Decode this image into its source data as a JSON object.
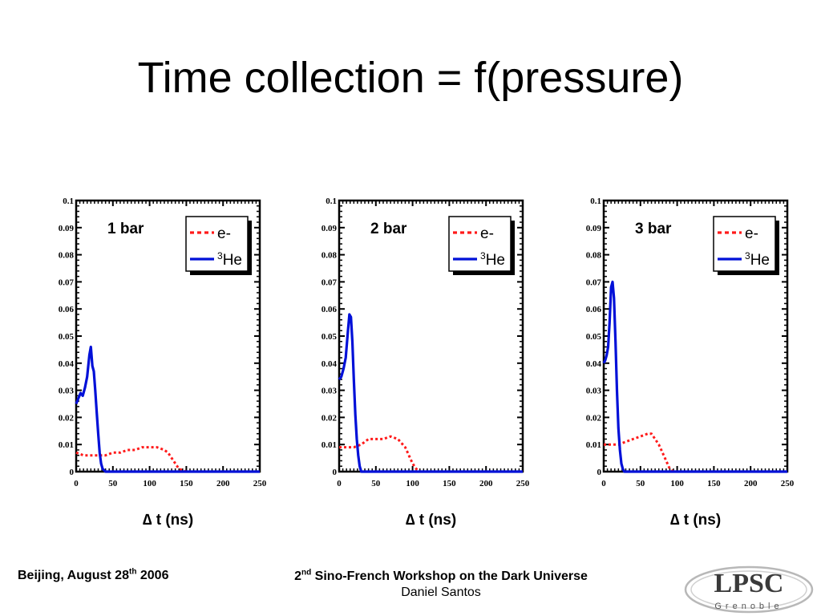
{
  "slide": {
    "title": "Time collection = f(pressure)"
  },
  "footer": {
    "location_date": {
      "prefix": "Beijing,  August 28",
      "sup": "th",
      "suffix": "  2006"
    },
    "workshop": {
      "prefix": "2",
      "sup": "nd",
      "suffix": " Sino-French Workshop on the Dark Universe"
    },
    "author": "Daniel Santos",
    "logo_text": "LPSC",
    "logo_subtext": "Grenoble"
  },
  "colors": {
    "electron_series": "#ff1a1a",
    "helium_series": "#0010d8",
    "axes": "#000000"
  },
  "chart_data": [
    {
      "type": "line",
      "panel_label": "1 bar",
      "xlabel": "∆ t (ns)",
      "ylabel": "",
      "xlim": [
        0,
        250
      ],
      "ylim": [
        0,
        0.1
      ],
      "xticks": [
        0,
        50,
        100,
        150,
        200,
        250
      ],
      "xtick_labels": [
        "0",
        "50",
        "100",
        "150",
        "200",
        "250"
      ],
      "yticks": [
        0,
        0.01,
        0.02,
        0.03,
        0.04,
        0.05,
        0.06,
        0.07,
        0.08,
        0.09,
        0.1
      ],
      "ytick_labels": [
        "0",
        "0.01",
        "0.02",
        "0.03",
        "0.04",
        "0.05",
        "0.06",
        "0.07",
        "0.08",
        "0.09",
        "0.1"
      ],
      "legend_position": "top-right",
      "series": [
        {
          "name": "e-",
          "legend": {
            "text": "e-"
          },
          "style": "dotted",
          "color": "#ff1a1a",
          "x": [
            0,
            10,
            20,
            30,
            40,
            50,
            60,
            70,
            80,
            90,
            100,
            110,
            120,
            125,
            130,
            135,
            140,
            150,
            200,
            250
          ],
          "y": [
            0.007,
            0.006,
            0.006,
            0.006,
            0.006,
            0.007,
            0.007,
            0.008,
            0.008,
            0.009,
            0.009,
            0.009,
            0.008,
            0.007,
            0.005,
            0.003,
            0.001,
            0,
            0,
            0
          ]
        },
        {
          "name": "3He",
          "legend": {
            "sup": "3",
            "text": "He"
          },
          "style": "solid",
          "color": "#0010d8",
          "x": [
            0,
            3,
            6,
            9,
            12,
            15,
            18,
            20,
            22,
            24,
            26,
            28,
            30,
            32,
            34,
            36,
            40,
            50,
            100,
            150,
            200,
            250
          ],
          "y": [
            0.025,
            0.027,
            0.029,
            0.028,
            0.031,
            0.035,
            0.043,
            0.046,
            0.039,
            0.037,
            0.03,
            0.022,
            0.014,
            0.007,
            0.003,
            0.001,
            0,
            0,
            0,
            0,
            0,
            0
          ]
        }
      ]
    },
    {
      "type": "line",
      "panel_label": "2 bar",
      "xlabel": "∆ t (ns)",
      "ylabel": "",
      "xlim": [
        0,
        250
      ],
      "ylim": [
        0,
        0.1
      ],
      "xticks": [
        0,
        50,
        100,
        150,
        200,
        250
      ],
      "xtick_labels": [
        "0",
        "50",
        "100",
        "150",
        "200",
        "250"
      ],
      "yticks": [
        0,
        0.01,
        0.02,
        0.03,
        0.04,
        0.05,
        0.06,
        0.07,
        0.08,
        0.09,
        0.1
      ],
      "ytick_labels": [
        "0",
        "0.01",
        "0.02",
        "0.03",
        "0.04",
        "0.05",
        "0.06",
        "0.07",
        "0.08",
        "0.09",
        "0.1"
      ],
      "legend_position": "top-right",
      "series": [
        {
          "name": "e-",
          "legend": {
            "text": "e-"
          },
          "style": "dotted",
          "color": "#ff1a1a",
          "x": [
            0,
            10,
            20,
            30,
            40,
            50,
            60,
            70,
            80,
            90,
            95,
            100,
            105,
            110,
            150,
            200,
            250
          ],
          "y": [
            0.009,
            0.009,
            0.009,
            0.01,
            0.012,
            0.012,
            0.012,
            0.013,
            0.012,
            0.009,
            0.006,
            0.003,
            0.001,
            0,
            0,
            0,
            0
          ],
          "note": ""
        },
        {
          "name": "3He",
          "legend": {
            "sup": "3",
            "text": "He"
          },
          "style": "solid",
          "color": "#0010d8",
          "x": [
            0,
            3,
            6,
            9,
            12,
            14,
            16,
            18,
            20,
            22,
            24,
            26,
            28,
            30,
            35,
            50,
            100,
            150,
            200,
            250
          ],
          "y": [
            0.034,
            0.035,
            0.038,
            0.042,
            0.052,
            0.058,
            0.057,
            0.048,
            0.034,
            0.021,
            0.012,
            0.006,
            0.002,
            0,
            0,
            0,
            0,
            0,
            0,
            0
          ]
        }
      ]
    },
    {
      "type": "line",
      "panel_label": "3 bar",
      "xlabel": "∆ t (ns)",
      "ylabel": "",
      "xlim": [
        0,
        250
      ],
      "ylim": [
        0,
        0.1
      ],
      "xticks": [
        0,
        50,
        100,
        150,
        200,
        250
      ],
      "xtick_labels": [
        "0",
        "50",
        "100",
        "150",
        "200",
        "250"
      ],
      "yticks": [
        0,
        0.01,
        0.02,
        0.03,
        0.04,
        0.05,
        0.06,
        0.07,
        0.08,
        0.09,
        0.1
      ],
      "ytick_labels": [
        "0",
        "0.01",
        "0.02",
        "0.03",
        "0.04",
        "0.05",
        "0.06",
        "0.07",
        "0.08",
        "0.09",
        "0.1"
      ],
      "legend_position": "top-right",
      "series": [
        {
          "name": "e-",
          "legend": {
            "text": "e-"
          },
          "style": "dotted",
          "color": "#ff1a1a",
          "x": [
            0,
            10,
            20,
            30,
            40,
            50,
            60,
            65,
            70,
            75,
            80,
            85,
            90,
            95,
            150,
            200,
            250
          ],
          "y": [
            0.01,
            0.01,
            0.01,
            0.011,
            0.012,
            0.013,
            0.014,
            0.014,
            0.012,
            0.01,
            0.007,
            0.004,
            0.001,
            0,
            0,
            0,
            0
          ]
        },
        {
          "name": "3He",
          "legend": {
            "sup": "3",
            "text": "He"
          },
          "style": "solid",
          "color": "#0010d8",
          "x": [
            0,
            2,
            4,
            6,
            8,
            10,
            12,
            14,
            16,
            18,
            20,
            22,
            24,
            26,
            28,
            35,
            50,
            100,
            150,
            200,
            250
          ],
          "y": [
            0.04,
            0.041,
            0.043,
            0.046,
            0.055,
            0.068,
            0.07,
            0.064,
            0.048,
            0.03,
            0.016,
            0.008,
            0.003,
            0.001,
            0,
            0,
            0,
            0,
            0,
            0,
            0
          ]
        }
      ]
    }
  ]
}
